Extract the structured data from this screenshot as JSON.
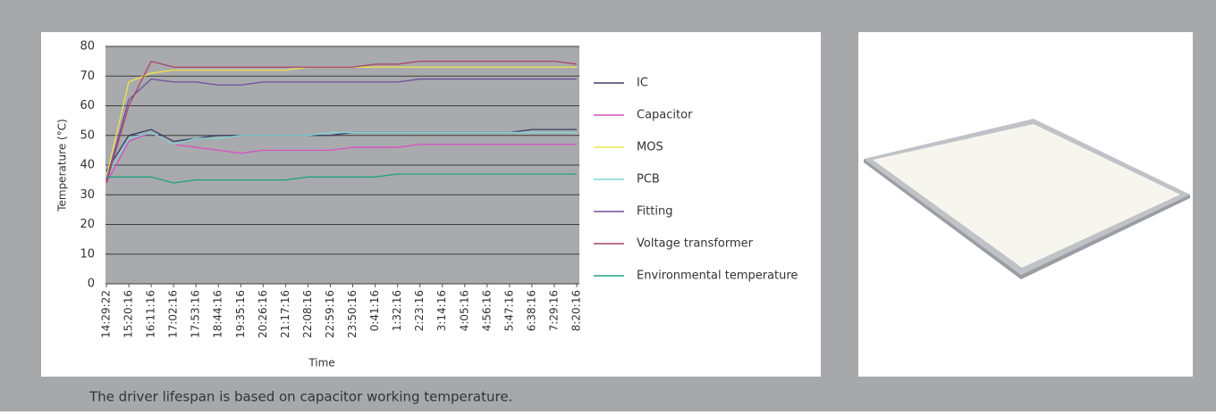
{
  "chart_data": {
    "type": "line",
    "y_label": "Temperature (°C)",
    "x_label": "Time",
    "categories": [
      "14:29:22",
      "15:20:16",
      "16:11:16",
      "17:02:16",
      "17:53:16",
      "18:44:16",
      "19:35:16",
      "20:26:16",
      "21:17:16",
      "22:08:16",
      "22:59:16",
      "23:50:16",
      "0:41:16",
      "1:32:16",
      "2:23:16",
      "3:14:16",
      "4:05:16",
      "4:56:16",
      "5:47:16",
      "6:38:16",
      "7:29:16",
      "8:20:16"
    ],
    "ylim": [
      0,
      80
    ],
    "yticks": [
      0,
      10,
      20,
      30,
      40,
      50,
      60,
      70,
      80
    ],
    "grid": true,
    "series": [
      {
        "name": "IC",
        "color": "#3b3f63",
        "values": [
          38,
          50,
          52,
          48,
          49,
          50,
          50,
          50,
          50,
          50,
          50,
          51,
          51,
          51,
          51,
          51,
          51,
          51,
          51,
          52,
          52,
          52
        ]
      },
      {
        "name": "Capacitor",
        "color": "#d452c2",
        "values": [
          34,
          48,
          51,
          47,
          46,
          45,
          44,
          45,
          45,
          45,
          45,
          46,
          46,
          46,
          47,
          47,
          47,
          47,
          47,
          47,
          47,
          47
        ]
      },
      {
        "name": "MOS",
        "color": "#f2e547",
        "values": [
          36,
          68,
          71,
          72,
          72,
          72,
          72,
          72,
          72,
          73,
          73,
          73,
          73,
          73,
          73,
          73,
          73,
          73,
          73,
          73,
          73,
          73
        ]
      },
      {
        "name": "PCB",
        "color": "#7fd6d6",
        "values": [
          36,
          49,
          51,
          47,
          49,
          49,
          50,
          50,
          50,
          50,
          51,
          51,
          51,
          51,
          51,
          51,
          51,
          51,
          51,
          51,
          51,
          51
        ]
      },
      {
        "name": "Fitting",
        "color": "#6e4f9e",
        "values": [
          35,
          62,
          69,
          68,
          68,
          67,
          67,
          68,
          68,
          68,
          68,
          68,
          68,
          68,
          69,
          69,
          69,
          69,
          69,
          69,
          69,
          69
        ]
      },
      {
        "name": "Voltage transformer",
        "color": "#a8446a",
        "values": [
          34,
          60,
          75,
          73,
          73,
          73,
          73,
          73,
          73,
          73,
          73,
          73,
          74,
          74,
          75,
          75,
          75,
          75,
          75,
          75,
          75,
          74
        ]
      },
      {
        "name": "Environmental temperature",
        "color": "#1fa383",
        "values": [
          36,
          36,
          36,
          34,
          35,
          35,
          35,
          35,
          35,
          36,
          36,
          36,
          36,
          37,
          37,
          37,
          37,
          37,
          37,
          37,
          37,
          37
        ]
      }
    ]
  },
  "caption": "The driver lifespan is based on capacitor working temperature."
}
